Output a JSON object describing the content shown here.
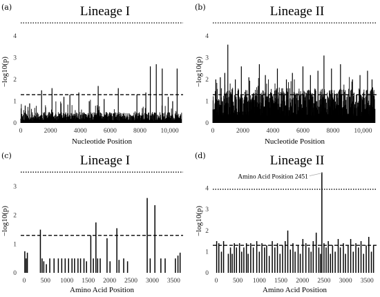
{
  "chart_data": [
    {
      "id": "a",
      "type": "bar",
      "panel_label": "(a)",
      "title": "Lineage I",
      "xlabel": "Nucleotide Position",
      "ylabel": "−log10(p)",
      "xlim": [
        0,
        10900
      ],
      "ylim": [
        0,
        4.7
      ],
      "xticks": [
        0,
        2000,
        4000,
        6000,
        8000,
        10000
      ],
      "xtick_labels": [
        "0",
        "2000",
        "4000",
        "6000",
        "8000",
        "10,000"
      ],
      "yticks": [
        0,
        1,
        2,
        3,
        4
      ],
      "ytick_labels": [
        "0",
        "1",
        "2",
        "3",
        "4"
      ],
      "dashed_threshold": 1.3,
      "dotted_threshold": 4.6,
      "background": {
        "step": 20,
        "min": 0.1,
        "max": 0.5,
        "start": 0,
        "end": 10800
      },
      "peaks": [
        [
          300,
          0.8
        ],
        [
          600,
          0.9
        ],
        [
          1400,
          1.5
        ],
        [
          2100,
          1.6
        ],
        [
          2900,
          1.2
        ],
        [
          3300,
          1.3
        ],
        [
          3900,
          1.4
        ],
        [
          4600,
          1.0
        ],
        [
          5200,
          1.7
        ],
        [
          5600,
          1.1
        ],
        [
          6550,
          1.6
        ],
        [
          7800,
          1.3
        ],
        [
          8400,
          1.4
        ],
        [
          8700,
          2.6
        ],
        [
          9100,
          2.7
        ],
        [
          9500,
          2.5
        ],
        [
          9900,
          1.2
        ],
        [
          10500,
          2.5
        ],
        [
          10200,
          1.0
        ]
      ]
    },
    {
      "id": "b",
      "type": "bar",
      "panel_label": "(b)",
      "title": "Lineage II",
      "xlabel": "Nucleotide Position",
      "ylabel": "−log10(p)",
      "xlim": [
        0,
        10900
      ],
      "ylim": [
        0,
        4.7
      ],
      "xticks": [
        0,
        2000,
        4000,
        6000,
        8000,
        10000
      ],
      "xtick_labels": [
        "0",
        "2000",
        "4000",
        "6000",
        "8000",
        "10,000"
      ],
      "yticks": [
        0,
        1,
        2,
        3,
        4
      ],
      "ytick_labels": [
        "0",
        "1",
        "2",
        "3",
        "4"
      ],
      "dashed_threshold": 1.3,
      "dotted_threshold": 4.6,
      "background": {
        "step": 15,
        "min": 0.3,
        "max": 1.6,
        "start": 0,
        "end": 10800
      },
      "peaks": [
        [
          200,
          2.0
        ],
        [
          500,
          2.1
        ],
        [
          800,
          2.3
        ],
        [
          1000,
          3.6
        ],
        [
          1500,
          2.0
        ],
        [
          1900,
          2.6
        ],
        [
          2400,
          2.1
        ],
        [
          3100,
          2.7
        ],
        [
          3500,
          2.2
        ],
        [
          4300,
          2.5
        ],
        [
          4900,
          2.0
        ],
        [
          5300,
          2.3
        ],
        [
          6000,
          2.6
        ],
        [
          6500,
          2.2
        ],
        [
          7000,
          2.4
        ],
        [
          7400,
          3.1
        ],
        [
          7900,
          2.5
        ],
        [
          8500,
          2.7
        ],
        [
          9300,
          2.0
        ],
        [
          9800,
          2.2
        ],
        [
          10300,
          2.4
        ],
        [
          10600,
          2.0
        ]
      ]
    },
    {
      "id": "c",
      "type": "bar",
      "panel_label": "(c)",
      "title": "Lineage I",
      "xlabel": "Amino Acid Position",
      "ylabel": "−log10(p)",
      "xlim": [
        -80,
        3720
      ],
      "ylim": [
        0,
        3.6
      ],
      "xticks": [
        0,
        500,
        1000,
        1500,
        2000,
        2500,
        3000,
        3500
      ],
      "xtick_labels": [
        "0",
        "500",
        "1000",
        "1500",
        "2000",
        "2500",
        "3000",
        "3500"
      ],
      "yticks": [
        0,
        1,
        2,
        3
      ],
      "ytick_labels": [
        "0",
        "1",
        "2",
        "3"
      ],
      "dashed_threshold": 1.3,
      "dotted_threshold": 3.5,
      "bars": [
        [
          15,
          0.75
        ],
        [
          45,
          0.5
        ],
        [
          75,
          0.7
        ],
        [
          380,
          1.5
        ],
        [
          420,
          0.5
        ],
        [
          460,
          0.4
        ],
        [
          520,
          0.3
        ],
        [
          600,
          0.5
        ],
        [
          700,
          0.5
        ],
        [
          800,
          0.5
        ],
        [
          880,
          0.5
        ],
        [
          960,
          0.5
        ],
        [
          1040,
          0.5
        ],
        [
          1120,
          0.5
        ],
        [
          1180,
          0.5
        ],
        [
          1260,
          0.5
        ],
        [
          1320,
          0.5
        ],
        [
          1400,
          0.5
        ],
        [
          1460,
          0.4
        ],
        [
          1560,
          1.3
        ],
        [
          1620,
          0.5
        ],
        [
          1680,
          1.75
        ],
        [
          1720,
          0.5
        ],
        [
          1780,
          0.5
        ],
        [
          1940,
          1.2
        ],
        [
          2010,
          0.4
        ],
        [
          2170,
          1.55
        ],
        [
          2220,
          0.45
        ],
        [
          2330,
          0.5
        ],
        [
          2420,
          0.4
        ],
        [
          2880,
          2.6
        ],
        [
          2950,
          0.5
        ],
        [
          3060,
          2.35
        ],
        [
          3200,
          0.5
        ],
        [
          3300,
          0.5
        ],
        [
          3540,
          0.5
        ],
        [
          3600,
          0.6
        ],
        [
          3650,
          0.7
        ]
      ]
    },
    {
      "id": "d",
      "type": "bar",
      "panel_label": "(d)",
      "title": "Lineage II",
      "xlabel": "Amino Acid Position",
      "ylabel": "−log10(p)",
      "xlim": [
        -80,
        3720
      ],
      "ylim": [
        0,
        4.9
      ],
      "xticks": [
        0,
        500,
        1000,
        1500,
        2000,
        2500,
        3000,
        3500
      ],
      "xtick_labels": [
        "0",
        "500",
        "1000",
        "1500",
        "2000",
        "2500",
        "3000",
        "3500"
      ],
      "yticks": [
        0,
        1,
        2,
        3,
        4
      ],
      "ytick_labels": [
        "0",
        "1",
        "2",
        "3",
        "4"
      ],
      "dashed_threshold": 1.3,
      "dotted_threshold": 3.95,
      "annotation": {
        "text": "Amino Acid Position 2451",
        "x": 2451,
        "y": 4.75
      },
      "bars": [
        [
          10,
          1.5
        ],
        [
          60,
          1.4
        ],
        [
          120,
          1.0
        ],
        [
          170,
          1.5
        ],
        [
          280,
          0.9
        ],
        [
          330,
          1.2
        ],
        [
          370,
          0.9
        ],
        [
          420,
          1.4
        ],
        [
          470,
          1.2
        ],
        [
          540,
          1.4
        ],
        [
          590,
          1.0
        ],
        [
          640,
          1.2
        ],
        [
          700,
          1.4
        ],
        [
          740,
          0.9
        ],
        [
          800,
          1.4
        ],
        [
          860,
          1.2
        ],
        [
          940,
          1.5
        ],
        [
          1000,
          1.0
        ],
        [
          1060,
          1.4
        ],
        [
          1120,
          1.2
        ],
        [
          1170,
          1.3
        ],
        [
          1230,
          0.8
        ],
        [
          1300,
          1.5
        ],
        [
          1360,
          1.2
        ],
        [
          1420,
          1.4
        ],
        [
          1480,
          0.9
        ],
        [
          1540,
          1.3
        ],
        [
          1600,
          1.5
        ],
        [
          1660,
          2.0
        ],
        [
          1720,
          1.1
        ],
        [
          1780,
          1.4
        ],
        [
          1830,
          1.0
        ],
        [
          1900,
          1.3
        ],
        [
          1950,
          0.9
        ],
        [
          2010,
          1.6
        ],
        [
          2080,
          1.4
        ],
        [
          2150,
          1.2
        ],
        [
          2200,
          1.0
        ],
        [
          2250,
          1.5
        ],
        [
          2320,
          1.9
        ],
        [
          2380,
          1.2
        ],
        [
          2420,
          0.9
        ],
        [
          2451,
          4.75
        ],
        [
          2500,
          1.4
        ],
        [
          2550,
          1.2
        ],
        [
          2600,
          1.5
        ],
        [
          2650,
          0.9
        ],
        [
          2700,
          1.3
        ],
        [
          2760,
          1.0
        ],
        [
          2830,
          1.6
        ],
        [
          2880,
          1.2
        ],
        [
          2950,
          1.4
        ],
        [
          3000,
          0.9
        ],
        [
          3060,
          1.3
        ],
        [
          3120,
          1.6
        ],
        [
          3180,
          1.0
        ],
        [
          3240,
          1.4
        ],
        [
          3300,
          1.2
        ],
        [
          3360,
          1.5
        ],
        [
          3420,
          0.9
        ],
        [
          3480,
          1.3
        ],
        [
          3540,
          1.7
        ],
        [
          3600,
          1.0
        ],
        [
          3650,
          1.3
        ]
      ]
    }
  ]
}
